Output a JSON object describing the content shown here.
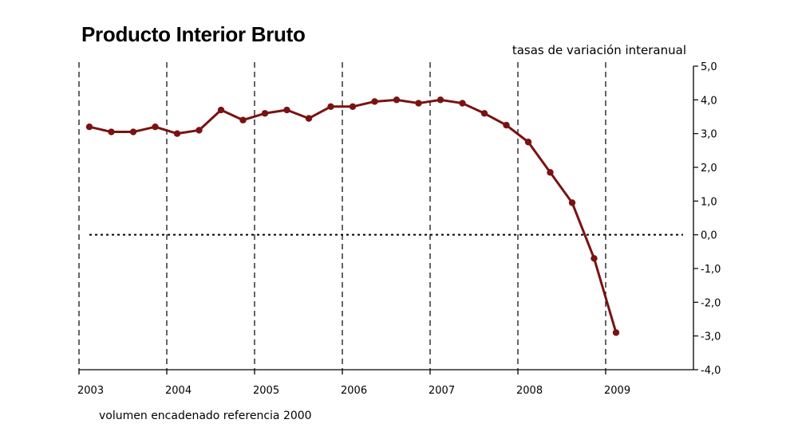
{
  "chart_data": {
    "type": "line",
    "title": "Producto Interior Bruto",
    "subtitle": "tasas de variación interanual",
    "note": "volumen encadenado referencia 2000",
    "x_labels": [
      "2003",
      "2004",
      "2005",
      "2006",
      "2007",
      "2008",
      "2009"
    ],
    "y_ticks": [
      "5,0",
      "4,0",
      "3,0",
      "2,0",
      "1,0",
      "0,0",
      "-1,0",
      "-2,0",
      "-3,0",
      "-4,0"
    ],
    "ylim": [
      -4,
      5
    ],
    "y_axis_position": "right",
    "vertical_gridlines": "dashed at each year",
    "zero_line": "dotted",
    "line_color": "#7a1212",
    "series": [
      {
        "x": [
          "2003 T1",
          "2003 T2",
          "2003 T3",
          "2003 T4",
          "2004 T1",
          "2004 T2",
          "2004 T3",
          "2004 T4",
          "2005 T1",
          "2005 T2",
          "2005 T3",
          "2005 T4",
          "2006 T1",
          "2006 T2",
          "2006 T3",
          "2006 T4",
          "2007 T1",
          "2007 T2",
          "2007 T3",
          "2007 T4",
          "2008 T1",
          "2008 T2",
          "2008 T3",
          "2008 T4",
          "2009 T1"
        ],
        "values": [
          3.2,
          3.05,
          3.05,
          3.2,
          3.0,
          3.1,
          3.7,
          3.4,
          3.6,
          3.7,
          3.45,
          3.8,
          3.8,
          3.95,
          4.0,
          3.9,
          4.0,
          3.9,
          3.6,
          3.25,
          2.75,
          1.85,
          0.95,
          -0.7,
          -2.9
        ]
      }
    ]
  }
}
